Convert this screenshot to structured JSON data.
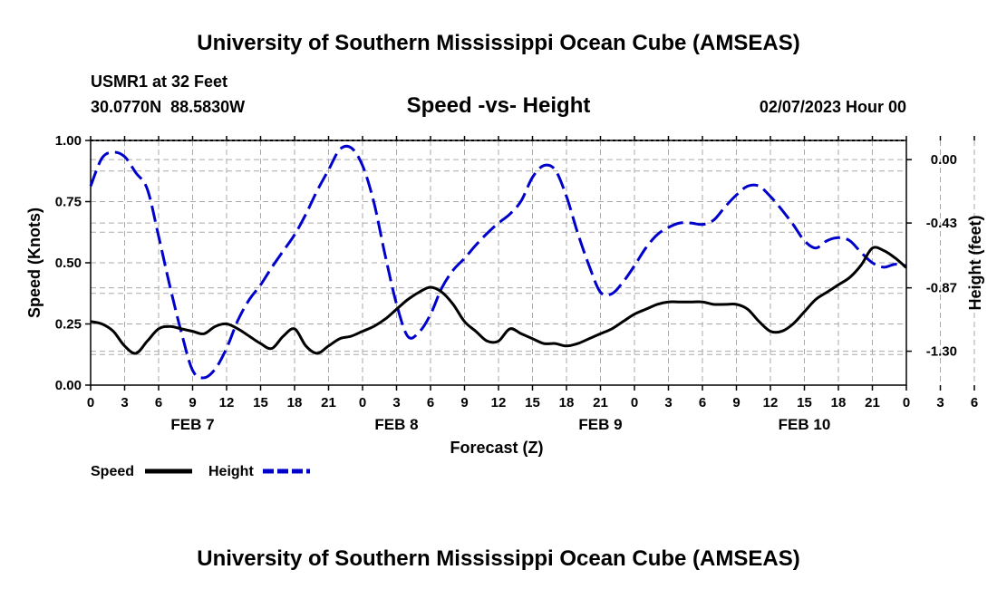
{
  "header": {
    "title": "University of Southern Mississippi Ocean Cube (AMSEAS)",
    "station": "USMR1 at 32 Feet",
    "coords": "30.0770N  88.5830W",
    "chart_title": "Speed -vs- Height",
    "datetime": "02/07/2023 Hour 00"
  },
  "footer": {
    "title": "University of Southern Mississippi Ocean Cube (AMSEAS)"
  },
  "chart_data": {
    "type": "line",
    "title": "Speed -vs- Height",
    "xlabel": "Forecast (Z)",
    "ylabel": "Speed (Knots)",
    "y2label": "Height (feet)",
    "xlim": [
      0,
      72
    ],
    "ylim": [
      0,
      1.0
    ],
    "y2lim": [
      -1.53,
      0.13
    ],
    "grid": true,
    "x_tick_labels": [
      "0",
      "3",
      "6",
      "9",
      "12",
      "15",
      "18",
      "21",
      "0",
      "3",
      "6",
      "9",
      "12",
      "15",
      "18",
      "21",
      "0",
      "3",
      "6",
      "9",
      "12",
      "15",
      "18",
      "21",
      "0",
      "3",
      "6",
      "9",
      "12",
      "15",
      "18",
      "21",
      "0"
    ],
    "day_labels": [
      {
        "label": "FEB 7",
        "x": 9
      },
      {
        "label": "FEB 8",
        "x": 27
      },
      {
        "label": "FEB 9",
        "x": 45
      },
      {
        "label": "FEB 10",
        "x": 63
      }
    ],
    "y_ticks": [
      "0.00",
      "0.25",
      "0.50",
      "0.75",
      "1.00"
    ],
    "y2_ticks": [
      "0.00",
      "-0.43",
      "-0.87",
      "-1.30"
    ],
    "legend": [
      {
        "name": "Speed",
        "color": "#000000",
        "style": "solid"
      },
      {
        "name": "Height",
        "color": "#0000cc",
        "style": "dashed"
      }
    ],
    "legend_position": "bottom-left",
    "series": [
      {
        "name": "Speed",
        "axis": "left",
        "color": "#000000",
        "x": [
          0,
          1,
          2,
          3,
          4,
          5,
          6,
          7,
          8,
          9,
          10,
          11,
          12,
          13,
          14,
          15,
          16,
          17,
          18,
          19,
          20,
          21,
          22,
          23,
          24,
          25,
          26,
          27,
          28,
          29,
          30,
          31,
          32,
          33,
          34,
          35,
          36,
          37,
          38,
          39,
          40,
          41,
          42,
          43,
          44,
          45,
          46,
          47,
          48,
          49,
          50,
          51,
          52,
          53,
          54,
          55,
          56,
          57,
          58,
          59,
          60,
          61,
          62,
          63,
          64,
          65,
          66,
          67,
          68,
          69,
          70,
          71,
          72
        ],
        "values": [
          0.26,
          0.25,
          0.22,
          0.16,
          0.13,
          0.18,
          0.23,
          0.24,
          0.23,
          0.22,
          0.21,
          0.24,
          0.25,
          0.23,
          0.2,
          0.17,
          0.15,
          0.2,
          0.23,
          0.16,
          0.13,
          0.16,
          0.19,
          0.2,
          0.22,
          0.24,
          0.27,
          0.31,
          0.35,
          0.38,
          0.4,
          0.38,
          0.33,
          0.26,
          0.22,
          0.18,
          0.18,
          0.23,
          0.21,
          0.19,
          0.17,
          0.17,
          0.16,
          0.17,
          0.19,
          0.21,
          0.23,
          0.26,
          0.29,
          0.31,
          0.33,
          0.34,
          0.34,
          0.34,
          0.34,
          0.33,
          0.33,
          0.33,
          0.31,
          0.26,
          0.22,
          0.22,
          0.25,
          0.3,
          0.35,
          0.38,
          0.41,
          0.44,
          0.49,
          0.56,
          0.55,
          0.52,
          0.48
        ]
      },
      {
        "name": "Height",
        "axis": "right",
        "color": "#0000cc",
        "x": [
          0,
          1,
          2,
          3,
          4,
          5,
          6,
          7,
          8,
          9,
          10,
          11,
          12,
          13,
          14,
          15,
          16,
          17,
          18,
          19,
          20,
          21,
          22,
          23,
          24,
          25,
          26,
          27,
          28,
          29,
          30,
          31,
          32,
          33,
          34,
          35,
          36,
          37,
          38,
          39,
          40,
          41,
          42,
          43,
          44,
          45,
          46,
          47,
          48,
          49,
          50,
          51,
          52,
          53,
          54,
          55,
          56,
          57,
          58,
          59,
          60,
          61,
          62,
          63,
          64,
          65,
          66,
          67,
          68,
          69,
          70,
          71,
          72
        ],
        "values": [
          -0.18,
          0.01,
          0.05,
          0.02,
          -0.09,
          -0.2,
          -0.52,
          -0.86,
          -1.17,
          -1.43,
          -1.48,
          -1.42,
          -1.28,
          -1.09,
          -0.95,
          -0.85,
          -0.73,
          -0.62,
          -0.51,
          -0.37,
          -0.21,
          -0.07,
          0.07,
          0.08,
          -0.04,
          -0.29,
          -0.65,
          -0.98,
          -1.2,
          -1.17,
          -1.05,
          -0.87,
          -0.75,
          -0.67,
          -0.58,
          -0.5,
          -0.43,
          -0.37,
          -0.28,
          -0.12,
          -0.04,
          -0.07,
          -0.25,
          -0.5,
          -0.72,
          -0.9,
          -0.91,
          -0.83,
          -0.72,
          -0.6,
          -0.51,
          -0.46,
          -0.43,
          -0.43,
          -0.44,
          -0.41,
          -0.32,
          -0.24,
          -0.18,
          -0.18,
          -0.25,
          -0.34,
          -0.44,
          -0.55,
          -0.6,
          -0.55,
          -0.53,
          -0.55,
          -0.63,
          -0.7,
          -0.73,
          -0.71,
          -0.72
        ]
      }
    ]
  }
}
